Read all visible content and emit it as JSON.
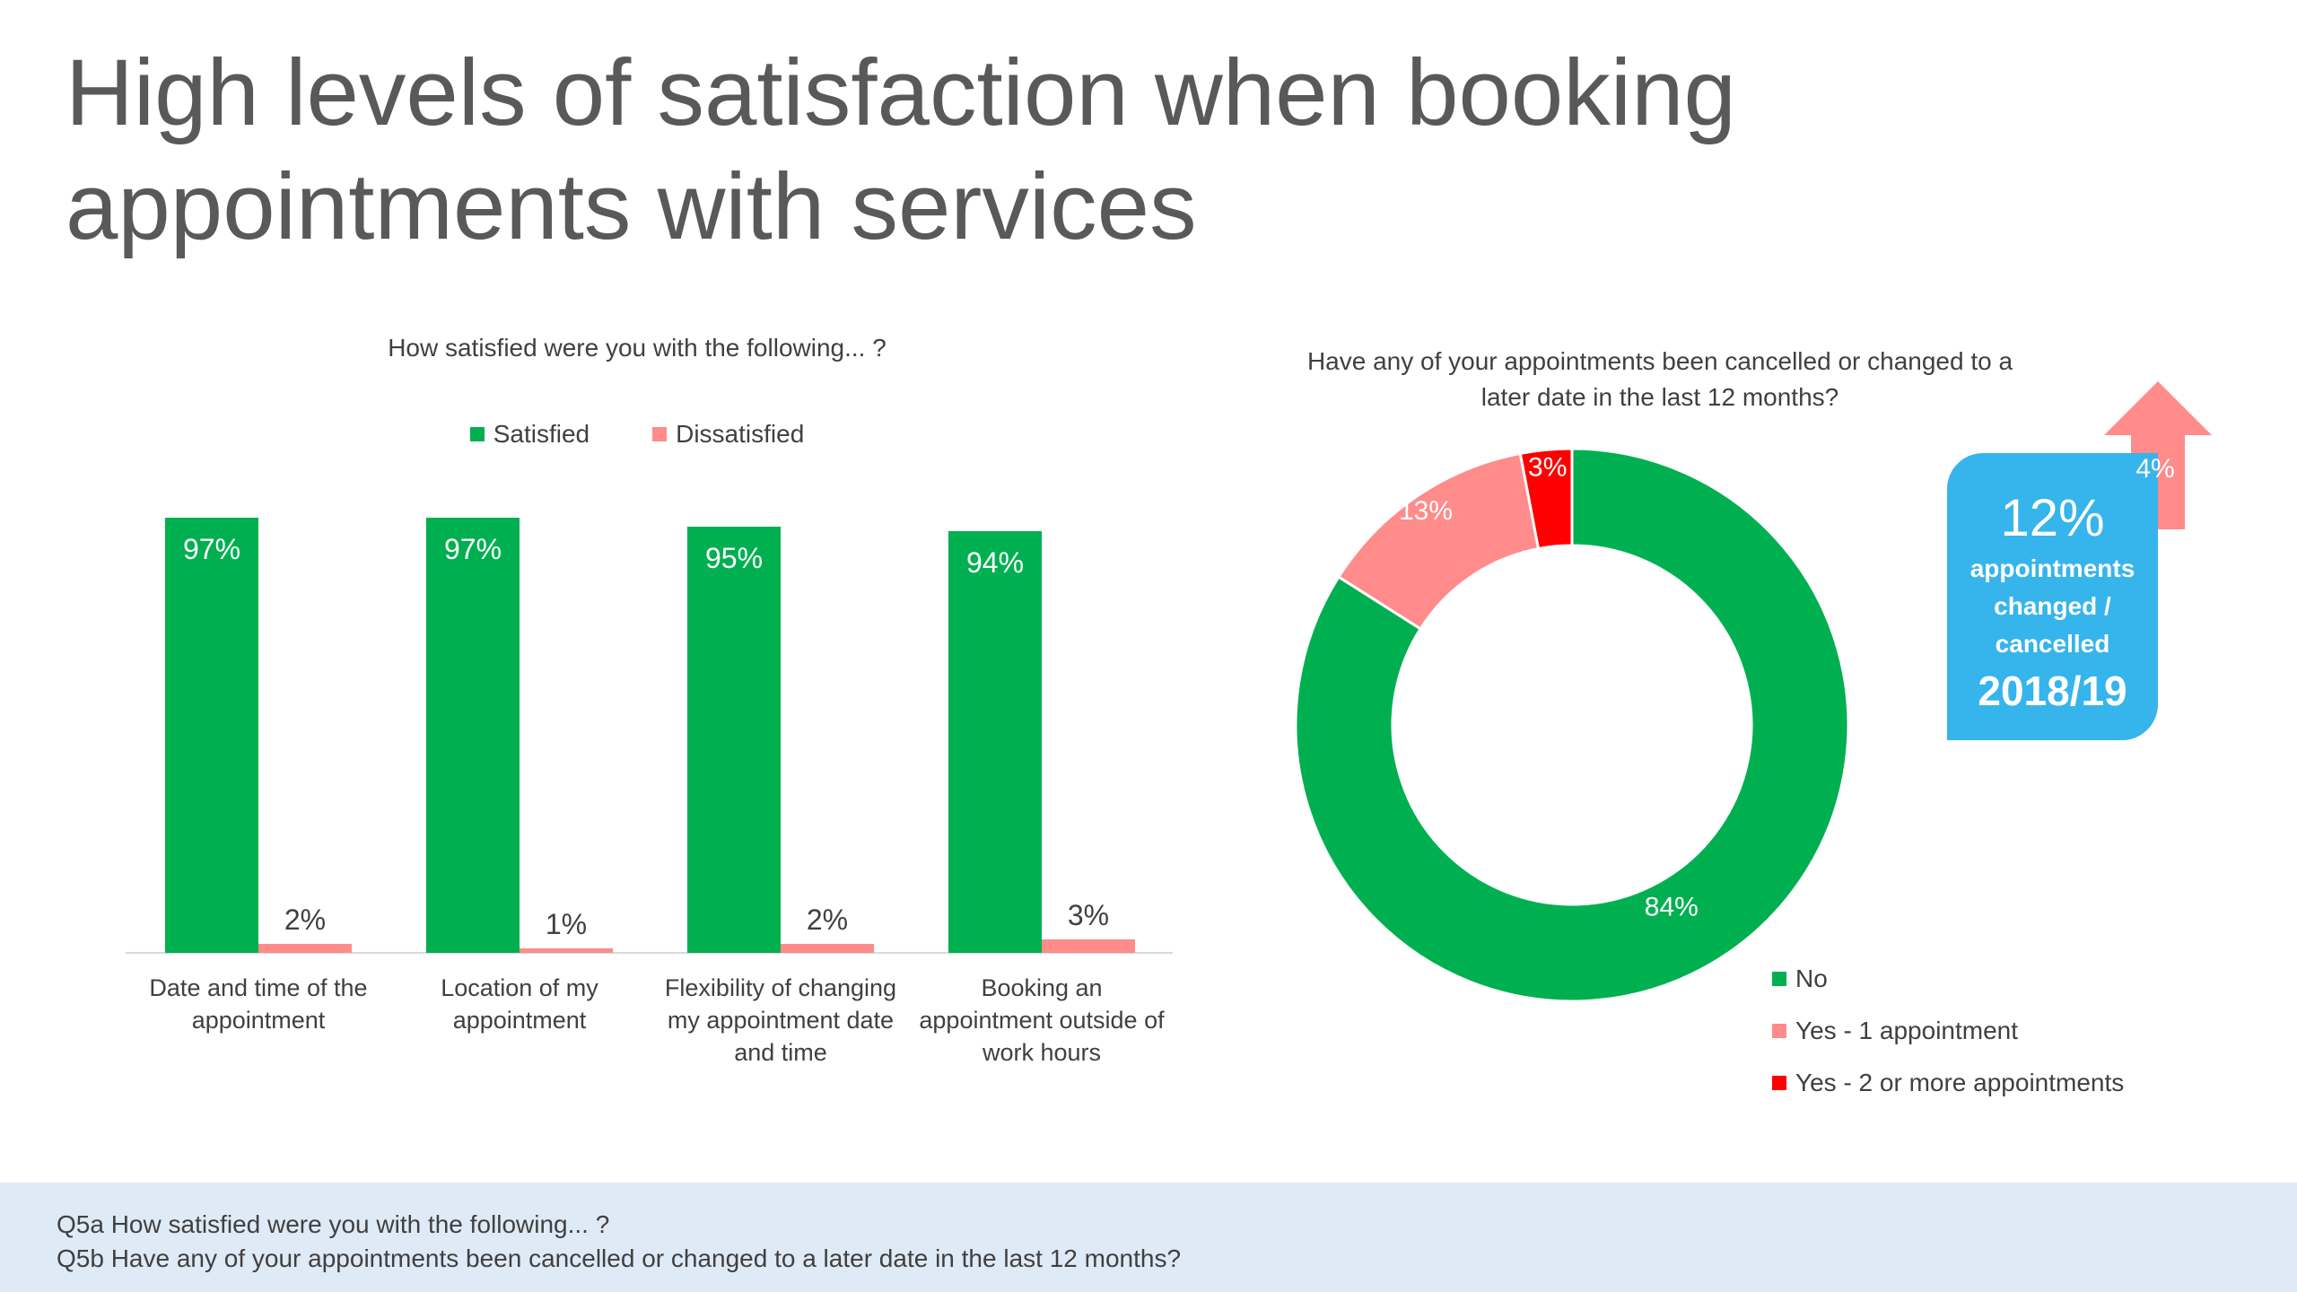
{
  "page": {
    "title_line1": "High levels of satisfaction when booking",
    "title_line2": "appointments with services"
  },
  "footer": {
    "note1": "Q5a How satisfied were you with the following... ?",
    "note2": "Q5b Have any of your appointments been cancelled or changed to a later date in the last 12 months?"
  },
  "callout": {
    "percent": "12%",
    "line1": "appointments",
    "line2": "changed /",
    "line3": "cancelled",
    "year": "2018/19",
    "increase": "4%"
  },
  "colors": {
    "satisfied": "#00b050",
    "dissatisfied": "#ff8b8b",
    "no": "#00b050",
    "yes1": "#ff8b8b",
    "yes2": "#ff0000",
    "callout": "#36b4ec"
  },
  "chart_data": [
    {
      "type": "bar",
      "title": "How satisfied were you with the following... ?",
      "categories": [
        [
          "Date and time of the",
          "appointment"
        ],
        [
          "Location of my",
          "appointment"
        ],
        [
          "Flexibility of changing",
          "my appointment date",
          "and time"
        ],
        [
          "Booking an",
          "appointment outside of",
          "work hours"
        ]
      ],
      "series": [
        {
          "name": "Satisfied",
          "values": [
            97,
            97,
            95,
            94
          ],
          "labels": [
            "97%",
            "97%",
            "95%",
            "94%"
          ]
        },
        {
          "name": "Dissatisfied",
          "values": [
            2,
            1,
            2,
            3
          ],
          "labels": [
            "2%",
            "1%",
            "2%",
            "3%"
          ]
        }
      ],
      "ylim": [
        0,
        100
      ],
      "legend": "top"
    },
    {
      "type": "pie",
      "title": "Have any of your appointments been cancelled or changed to a later date in the last 12 months?",
      "title_lines": [
        "Have any of your appointments been cancelled or changed to a",
        "later date in the last 12 months?"
      ],
      "categories": [
        "No",
        "Yes - 1 appointment",
        "Yes - 2 or more appointments"
      ],
      "values": [
        84,
        13,
        3
      ],
      "labels": [
        "84%",
        "13%",
        "3%"
      ],
      "donut": true,
      "legend": "bottom-right"
    }
  ]
}
